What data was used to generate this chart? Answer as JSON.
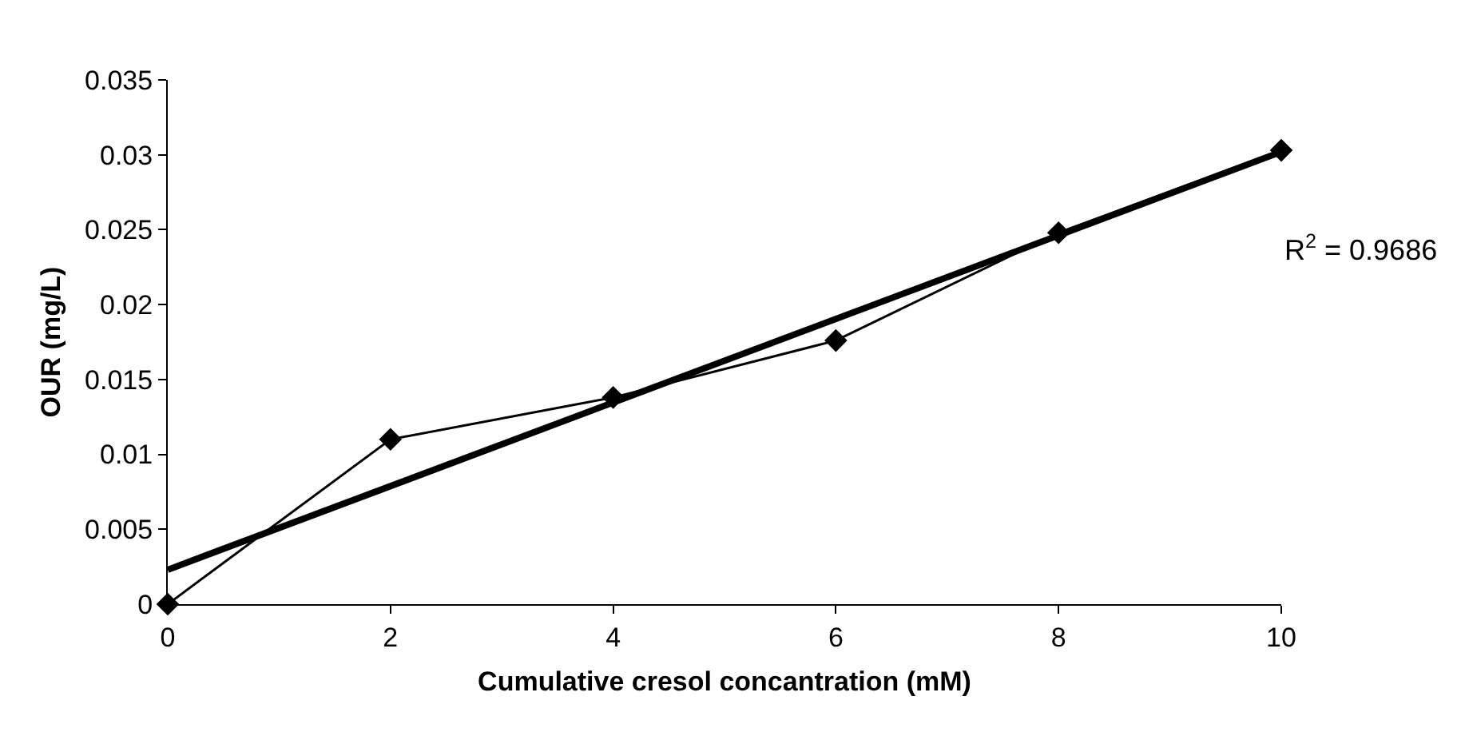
{
  "chart_data": {
    "type": "line",
    "xlabel": "Cumulative cresol concantration (mM)",
    "ylabel": "OUR (mg/L)",
    "x": [
      0,
      2,
      4,
      6,
      8,
      10
    ],
    "series": [
      {
        "color": "#000000",
        "values": [
          0,
          0.011,
          0.0138,
          0.0176,
          0.0248,
          0.0303
        ],
        "marker": "diamond"
      },
      {
        "type": "line",
        "color": "#000000",
        "x": [
          0,
          10
        ],
        "values": [
          0.0023,
          0.0302
        ],
        "marker": "none"
      }
    ],
    "xlim": [
      0,
      10
    ],
    "xticks": [
      0,
      2,
      4,
      6,
      8,
      10
    ],
    "ylim": [
      0,
      0.035
    ],
    "yticks": [
      0,
      0.005,
      0.01,
      0.015,
      0.02,
      0.025,
      0.03,
      0.035
    ],
    "annotations": [
      "R$^{2}$ = 0.9686"
    ]
  }
}
